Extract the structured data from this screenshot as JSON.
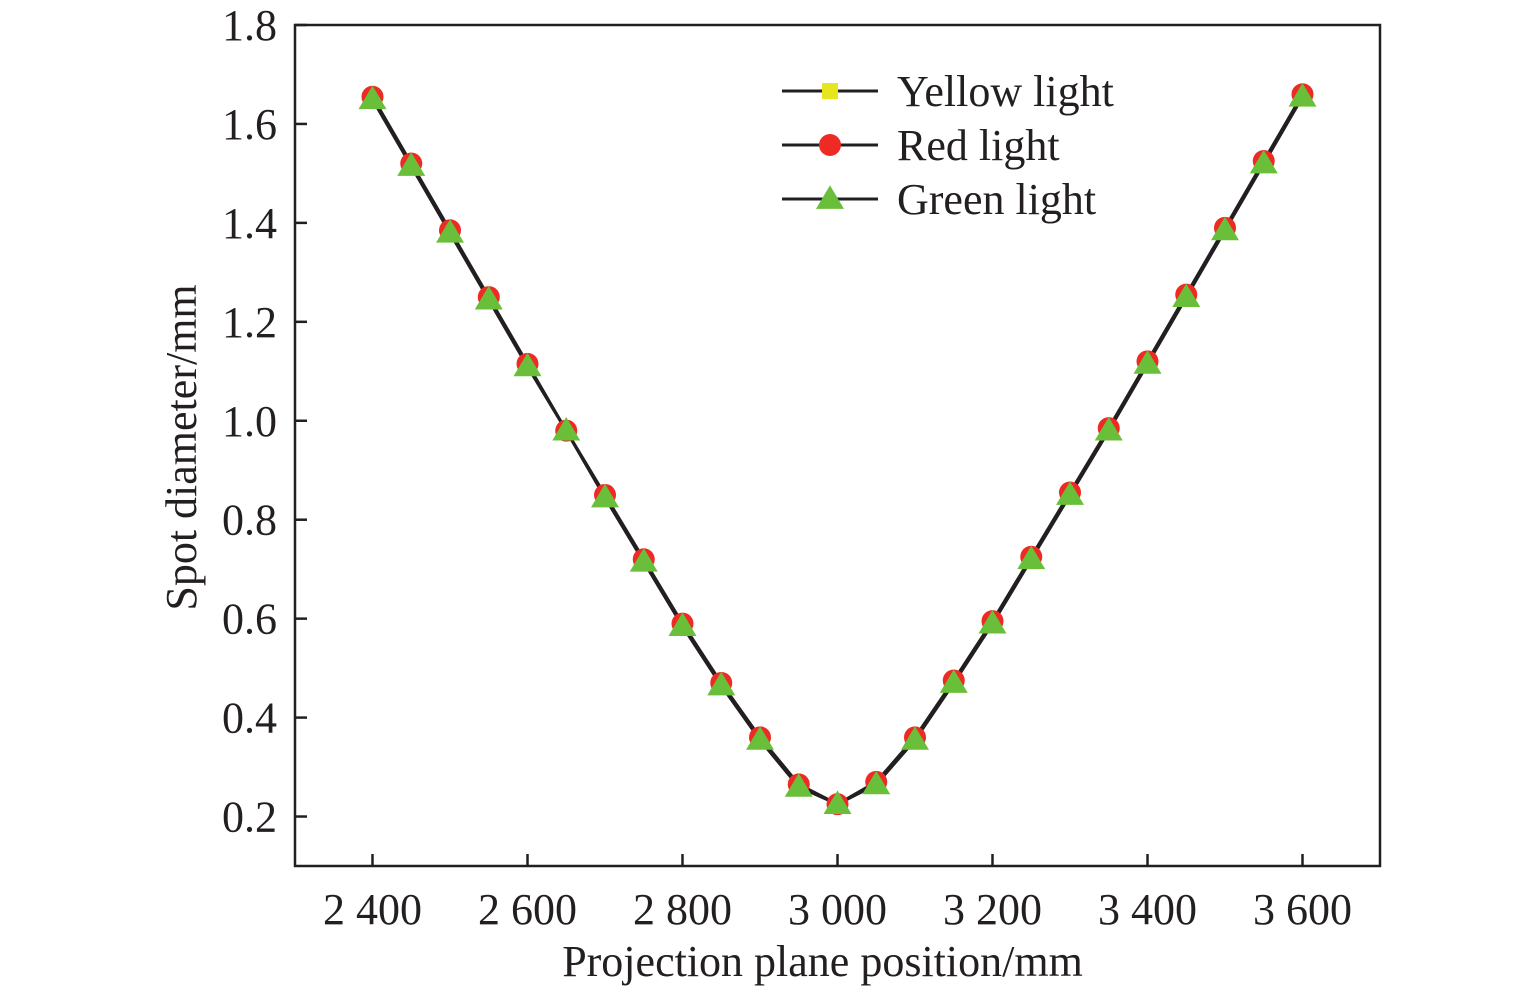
{
  "chart_data": {
    "type": "line",
    "title": "",
    "xlabel": "Projection plane position/mm",
    "ylabel": "Spot diameter/mm",
    "xlim": [
      2300,
      3700
    ],
    "ylim": [
      0.1,
      1.8
    ],
    "grid": false,
    "legend_position": "top-right",
    "x_ticks": [
      2400,
      2600,
      2800,
      3000,
      3200,
      3400,
      3600
    ],
    "x_tick_labels": [
      "2 400",
      "2 600",
      "2 800",
      "3 000",
      "3 200",
      "3 400",
      "3 600"
    ],
    "y_ticks": [
      0.2,
      0.4,
      0.6,
      0.8,
      1.0,
      1.2,
      1.4,
      1.6,
      1.8
    ],
    "y_tick_labels": [
      "0.2",
      "0.4",
      "0.6",
      "0.8",
      "1.0",
      "1.2",
      "1.4",
      "1.6",
      "1.8"
    ],
    "x": [
      2400,
      2450,
      2500,
      2550,
      2600,
      2650,
      2700,
      2750,
      2800,
      2850,
      2900,
      2950,
      3000,
      3050,
      3100,
      3150,
      3200,
      3250,
      3300,
      3350,
      3400,
      3450,
      3500,
      3550,
      3600
    ],
    "line_color": "#231f20",
    "series": [
      {
        "name": "Yellow light",
        "marker": "square",
        "color": "#e6e620",
        "values": [
          1.65,
          1.515,
          1.38,
          1.245,
          1.11,
          0.98,
          0.845,
          0.715,
          0.585,
          0.465,
          0.355,
          0.26,
          0.225,
          0.265,
          0.355,
          0.47,
          0.59,
          0.72,
          0.85,
          0.98,
          1.115,
          1.25,
          1.385,
          1.52,
          1.655
        ]
      },
      {
        "name": "Red light",
        "marker": "circle",
        "color": "#ee2a24",
        "values": [
          1.655,
          1.52,
          1.385,
          1.25,
          1.115,
          0.98,
          0.85,
          0.72,
          0.59,
          0.47,
          0.36,
          0.265,
          0.225,
          0.27,
          0.36,
          0.475,
          0.595,
          0.725,
          0.855,
          0.985,
          1.12,
          1.255,
          1.39,
          1.525,
          1.66
        ]
      },
      {
        "name": "Green light",
        "marker": "triangle",
        "color": "#6abf3a",
        "values": [
          1.65,
          1.515,
          1.38,
          1.245,
          1.11,
          0.98,
          0.845,
          0.715,
          0.585,
          0.465,
          0.355,
          0.26,
          0.225,
          0.265,
          0.355,
          0.47,
          0.59,
          0.72,
          0.85,
          0.98,
          1.115,
          1.25,
          1.385,
          1.52,
          1.655
        ]
      }
    ]
  }
}
